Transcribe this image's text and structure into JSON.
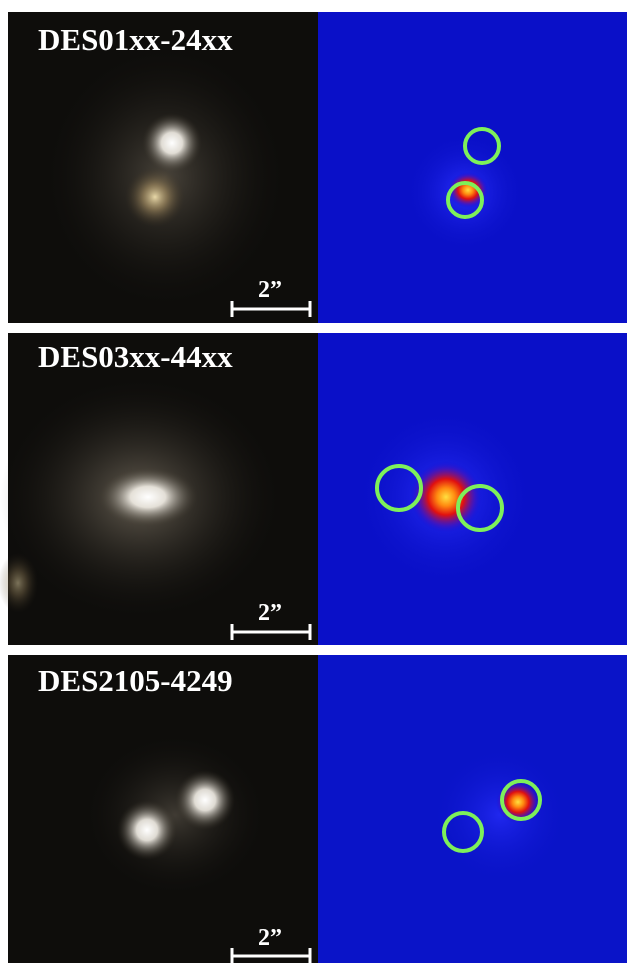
{
  "panels": [
    {
      "label": "DES01xx-24xx",
      "scale_label": "2”"
    },
    {
      "label": "DES03xx-44xx",
      "scale_label": "2”"
    },
    {
      "label": "DES2105-4249",
      "scale_label": "2”"
    }
  ]
}
